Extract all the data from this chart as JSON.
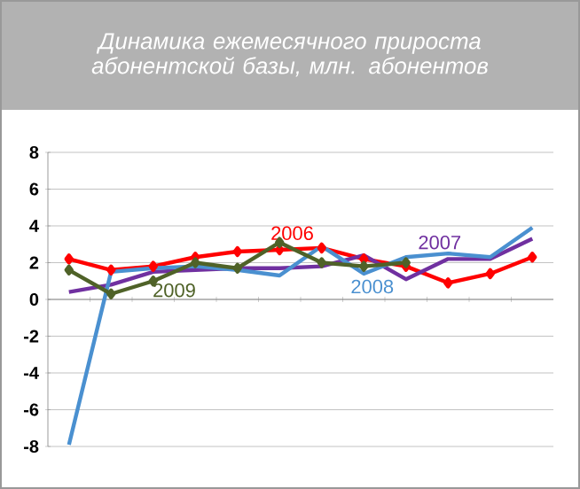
{
  "chart_data": {
    "type": "line",
    "title": "Динамика ежемесячного прироста абонентской базы, млн. абонентов",
    "categories": [
      null,
      null,
      null,
      null,
      null,
      null,
      null,
      null,
      null,
      null,
      null,
      null
    ],
    "series": [
      {
        "name": "2006",
        "color": "#ff0000",
        "marker": "diamond",
        "values": [
          2.2,
          1.6,
          1.8,
          2.3,
          2.6,
          2.7,
          2.8,
          2.2,
          1.8,
          0.9,
          1.4,
          2.3
        ]
      },
      {
        "name": "2007",
        "color": "#7030a0",
        "values": [
          0.4,
          0.8,
          1.5,
          1.6,
          1.7,
          1.7,
          1.8,
          2.4,
          1.1,
          2.2,
          2.2,
          3.3
        ]
      },
      {
        "name": "2008",
        "color": "#4a90d0",
        "values": [
          -7.9,
          1.5,
          1.7,
          1.8,
          1.6,
          1.3,
          2.9,
          1.4,
          2.3,
          2.5,
          2.3,
          3.9
        ]
      },
      {
        "name": "2009",
        "color": "#4f6228",
        "marker": "diamond",
        "values": [
          1.6,
          0.3,
          1.0,
          2.0,
          1.7,
          3.1,
          2.0,
          1.8,
          2.0,
          null,
          null,
          null
        ]
      }
    ],
    "ylim": [
      -8,
      8
    ],
    "yticks": [
      -8,
      -6,
      -4,
      -2,
      0,
      2,
      4,
      6,
      8
    ],
    "grid": "y"
  }
}
